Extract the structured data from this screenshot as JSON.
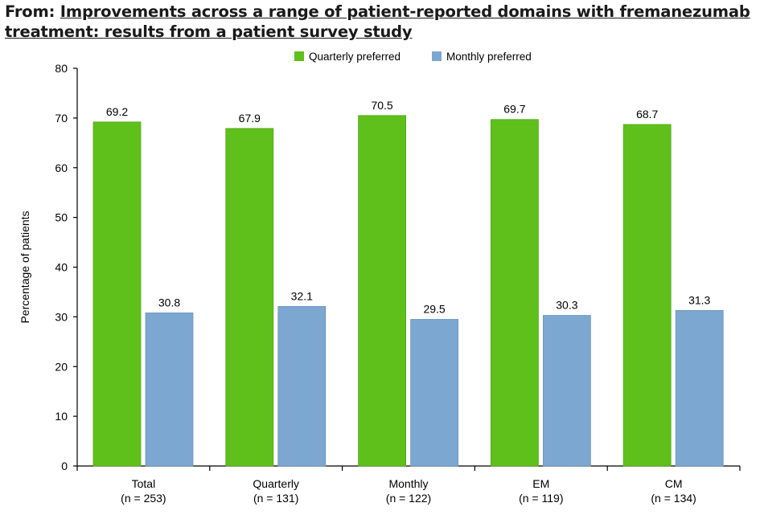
{
  "header": {
    "prefix": "From: ",
    "title": "Improvements across a range of patient-reported domains with fremanezumab treatment: results from a patient survey study"
  },
  "chart_data": {
    "type": "bar",
    "ylabel": "Percentage of patients",
    "ylim": [
      0,
      80
    ],
    "yticks": [
      0,
      10,
      20,
      30,
      40,
      50,
      60,
      70,
      80
    ],
    "categories": [
      [
        "Total",
        "(n = 253)"
      ],
      [
        "Quarterly",
        "(n = 131)"
      ],
      [
        "Monthly",
        "(n = 122)"
      ],
      [
        "EM",
        "(n = 119)"
      ],
      [
        "CM",
        "(n = 134)"
      ]
    ],
    "series": [
      {
        "name": "Quarterly preferred",
        "color": "#5fbf1b",
        "values": [
          69.2,
          67.9,
          70.5,
          69.7,
          68.7
        ]
      },
      {
        "name": "Monthly preferred",
        "color": "#7ba7d0",
        "values": [
          30.8,
          32.1,
          29.5,
          30.3,
          31.3
        ]
      }
    ],
    "legend_position": "top-center"
  }
}
